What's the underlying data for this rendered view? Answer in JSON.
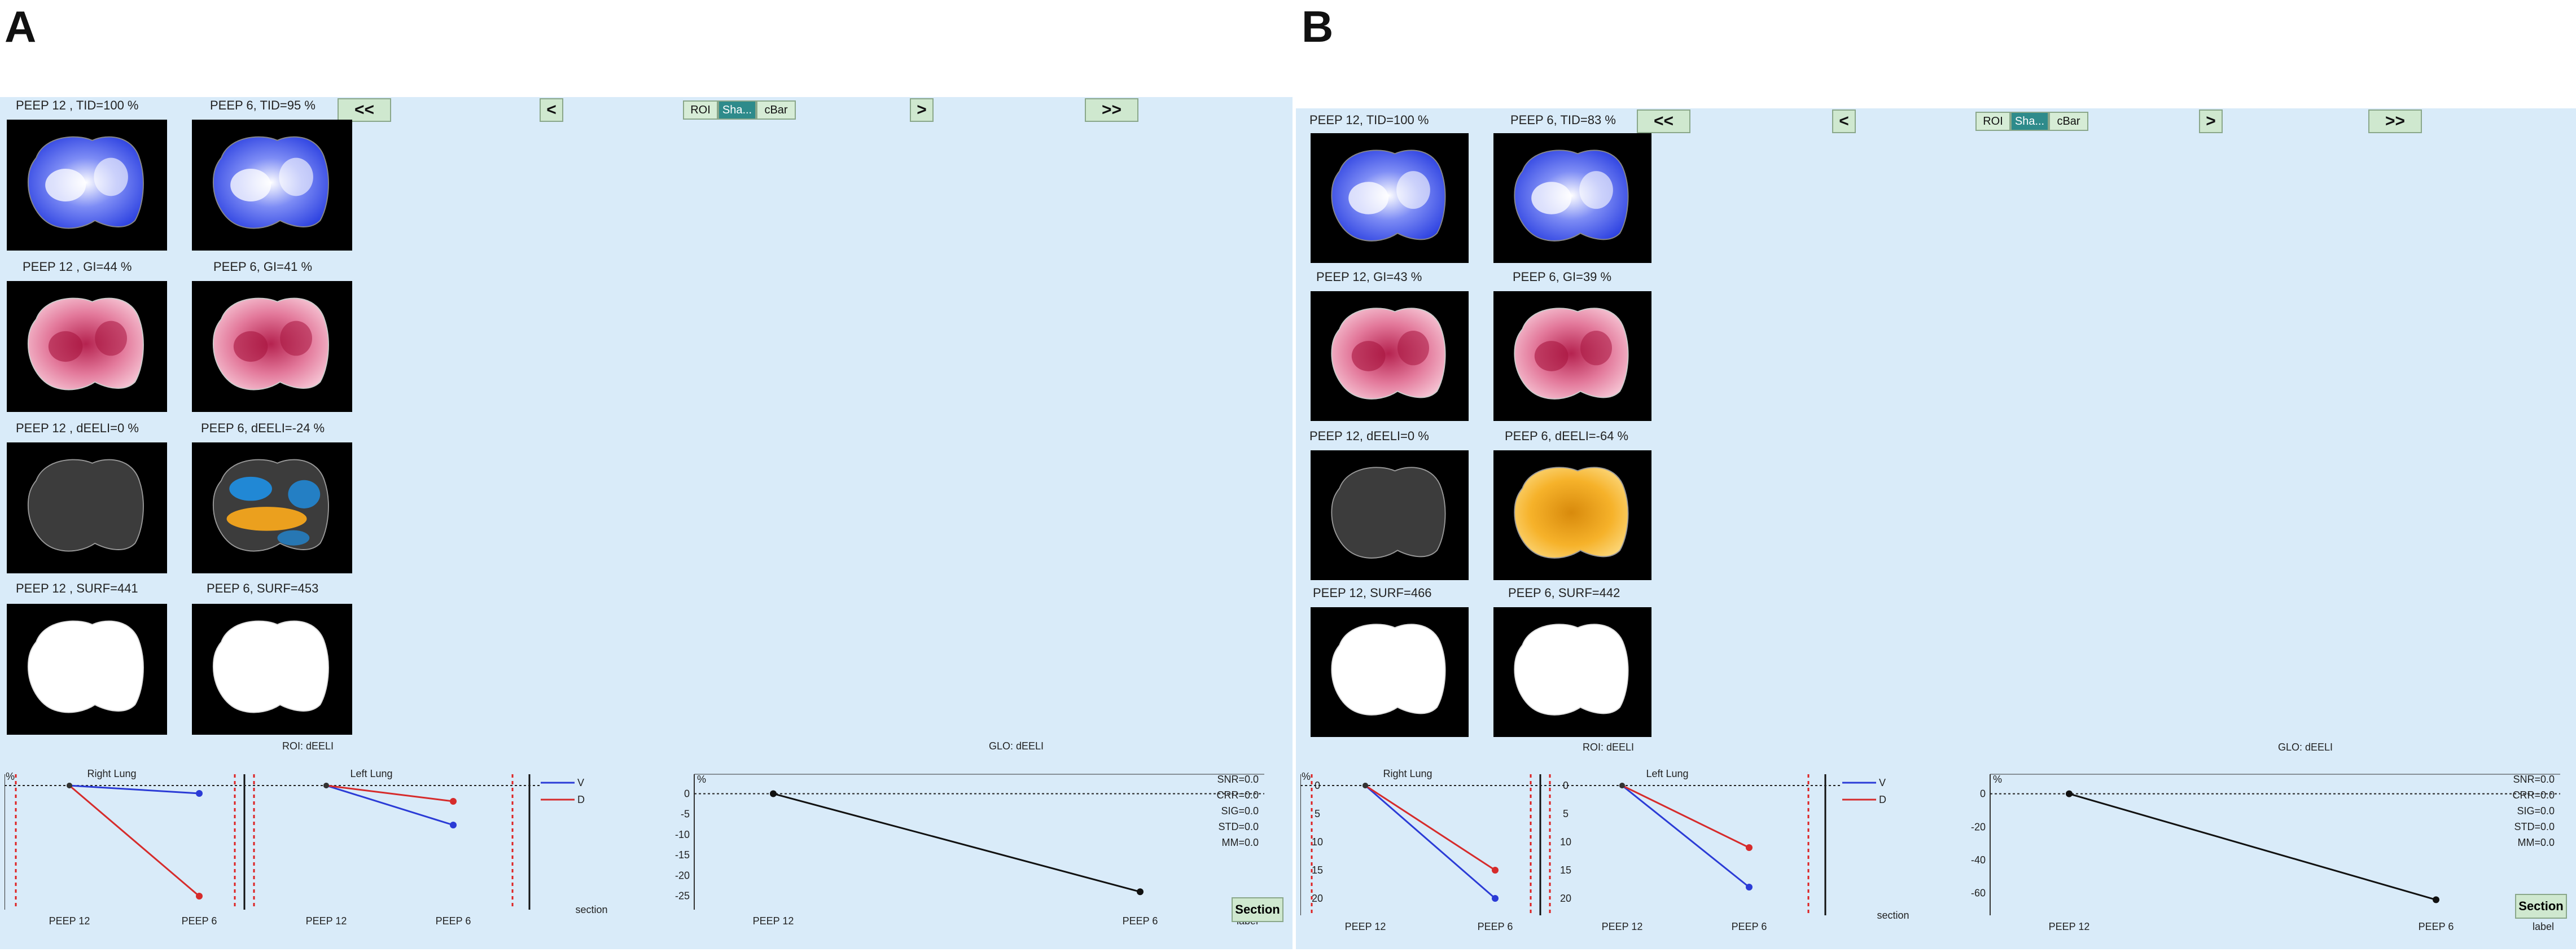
{
  "panels": [
    {
      "letter": "A",
      "nav": {
        "first": "<<",
        "prev": "<",
        "next": ">",
        "last": ">>",
        "roi": "ROI",
        "sha": "Sha...",
        "cbar": "cBar"
      },
      "images": [
        {
          "label": "PEEP 12 , TID=100 %",
          "kind": "tid"
        },
        {
          "label": "PEEP 6, TID=95 %",
          "kind": "tid"
        },
        {
          "label": "PEEP 12 , GI=44 %",
          "kind": "gi"
        },
        {
          "label": "PEEP 6, GI=41 %",
          "kind": "gi"
        },
        {
          "label": "PEEP 12 , dEELI=0 %",
          "kind": "gray"
        },
        {
          "label": "PEEP 6, dEELI=-24 %",
          "kind": "mixed"
        },
        {
          "label": "PEEP 12 , SURF=441",
          "kind": "surf"
        },
        {
          "label": "PEEP 6, SURF=453",
          "kind": "surf"
        }
      ],
      "roi_title": "ROI: dEELI",
      "right_lung": "Right Lung",
      "left_lung": "Left Lung",
      "legend": [
        "V",
        "D"
      ],
      "section_label": "section",
      "percent": "%",
      "x_ticks": [
        "PEEP 12",
        "PEEP 6"
      ],
      "glo_title": "GLO: dEELI",
      "glo_yticks": [
        "0",
        "-5",
        "-10",
        "-15",
        "-20",
        "-25"
      ],
      "stats": [
        "SNR=0.0",
        "CRR=0.0",
        "SIG=0.0",
        "STD=0.0",
        "MM=0.0"
      ],
      "glo_xticks": [
        "PEEP 12",
        "PEEP 6"
      ],
      "label_text": "label",
      "section_button": "Section"
    },
    {
      "letter": "B",
      "nav": {
        "first": "<<",
        "prev": "<",
        "next": ">",
        "last": ">>",
        "roi": "ROI",
        "sha": "Sha...",
        "cbar": "cBar"
      },
      "images": [
        {
          "label": "PEEP 12, TID=100 %",
          "kind": "tid"
        },
        {
          "label": "PEEP 6, TID=83 %",
          "kind": "tid"
        },
        {
          "label": "PEEP 12, GI=43 %",
          "kind": "gi"
        },
        {
          "label": "PEEP 6, GI=39 %",
          "kind": "gi"
        },
        {
          "label": "PEEP 12, dEELI=0 %",
          "kind": "gray"
        },
        {
          "label": "PEEP 6, dEELI=-64 %",
          "kind": "orange"
        },
        {
          "label": "PEEP 12, SURF=466",
          "kind": "surf"
        },
        {
          "label": "PEEP 6, SURF=442",
          "kind": "surf"
        }
      ],
      "roi_title": "ROI: dEELI",
      "right_lung": "Right Lung",
      "left_lung": "Left Lung",
      "legend": [
        "V",
        "D"
      ],
      "section_label": "section",
      "percent": "%",
      "roi_yticks": [
        "0",
        "5",
        "10",
        "15",
        "20"
      ],
      "x_ticks": [
        "PEEP 12",
        "PEEP 6"
      ],
      "glo_title": "GLO: dEELI",
      "glo_yticks": [
        "0",
        "-20",
        "-40",
        "-60"
      ],
      "stats": [
        "SNR=0.0",
        "CRR=0.0",
        "SIG=0.0",
        "STD=0.0",
        "MM=0.0"
      ],
      "glo_xticks": [
        "PEEP 12",
        "PEEP 6"
      ],
      "label_text": "label",
      "section_button": "Section"
    }
  ],
  "chart_data": [
    {
      "type": "line",
      "panel": "A",
      "title": "Right Lung",
      "x": [
        "PEEP 12",
        "PEEP 6"
      ],
      "series": [
        {
          "name": "V",
          "values": [
            0,
            -2
          ]
        },
        {
          "name": "D",
          "values": [
            0,
            -28
          ]
        }
      ],
      "color_V": "#2b3bd6",
      "color_D": "#d62b2b"
    },
    {
      "type": "line",
      "panel": "A",
      "title": "Left Lung",
      "x": [
        "PEEP 12",
        "PEEP 6"
      ],
      "series": [
        {
          "name": "V",
          "values": [
            0,
            -10
          ]
        },
        {
          "name": "D",
          "values": [
            0,
            -4
          ]
        }
      ]
    },
    {
      "type": "line",
      "panel": "A",
      "title": "GLO: dEELI",
      "x": [
        "PEEP 12",
        "PEEP 6"
      ],
      "ylim": [
        -27,
        2
      ],
      "series": [
        {
          "values": [
            0,
            -24
          ]
        }
      ]
    },
    {
      "type": "line",
      "panel": "B",
      "title": "Right Lung",
      "x": [
        "PEEP 12",
        "PEEP 6"
      ],
      "ylim": [
        0,
        22
      ],
      "series": [
        {
          "name": "V",
          "values": [
            0,
            20
          ]
        },
        {
          "name": "D",
          "values": [
            0,
            15
          ]
        }
      ]
    },
    {
      "type": "line",
      "panel": "B",
      "title": "Left Lung",
      "x": [
        "PEEP 12",
        "PEEP 6"
      ],
      "ylim": [
        0,
        22
      ],
      "series": [
        {
          "name": "V",
          "values": [
            0,
            18
          ]
        },
        {
          "name": "D",
          "values": [
            0,
            11
          ]
        }
      ]
    },
    {
      "type": "line",
      "panel": "B",
      "title": "GLO: dEELI",
      "x": [
        "PEEP 12",
        "PEEP 6"
      ],
      "ylim": [
        -70,
        5
      ],
      "series": [
        {
          "values": [
            0,
            -64
          ]
        }
      ]
    }
  ]
}
